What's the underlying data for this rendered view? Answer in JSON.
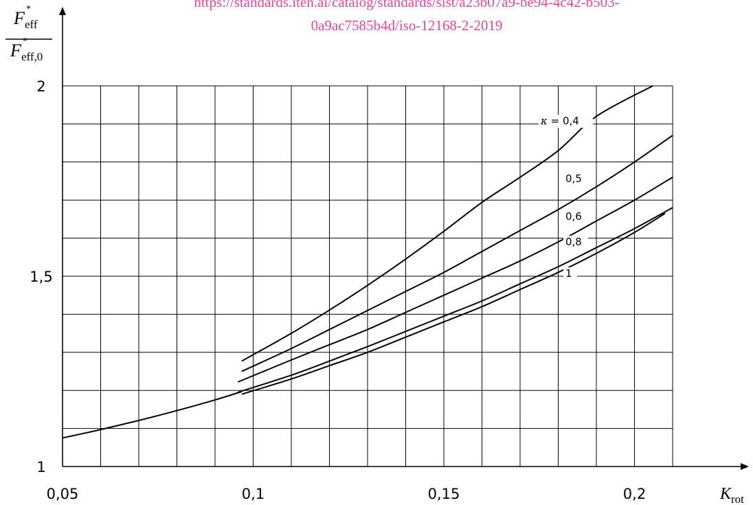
{
  "watermark": {
    "line1": "https://standards.iteh.ai/catalog/standards/sist/a23b07a9-be94-4c42-b503-",
    "line2": "0a9ac7585b4d/iso-12168-2-2019"
  },
  "chart_data": {
    "type": "line",
    "title": "",
    "xlabel": {
      "main": "K",
      "sub": "rot"
    },
    "ylabel": {
      "numerator": {
        "main": "F",
        "sup": "*",
        "sub": "eff"
      },
      "denominator": {
        "main": "F",
        "sup": "*",
        "sub": "eff,0"
      }
    },
    "xlim": [
      0.05,
      0.21
    ],
    "ylim": [
      1,
      2
    ],
    "x_ticks": [
      0.05,
      0.1,
      0.15,
      0.2
    ],
    "x_tick_labels": [
      "0,05",
      "0,1",
      "0,15",
      "0,2"
    ],
    "y_ticks": [
      1,
      1.5,
      2
    ],
    "y_tick_labels": [
      "1",
      "1,5",
      "2"
    ],
    "grid": {
      "on": true,
      "x_step": 0.01,
      "y_step": 0.1
    },
    "common_curve": {
      "name": "",
      "x": [
        0.05,
        0.06,
        0.07,
        0.08,
        0.09,
        0.097
      ],
      "y": [
        1.075,
        1.097,
        1.121,
        1.147,
        1.175,
        1.197
      ]
    },
    "series": [
      {
        "name": "κ = 0,4",
        "label_parts": {
          "symbol": "κ",
          "eq": " = ",
          "value": "0,4"
        },
        "x": [
          0.097,
          0.11,
          0.12,
          0.13,
          0.14,
          0.15,
          0.16,
          0.17,
          0.18,
          0.19,
          0.2048
        ],
        "y": [
          1.277,
          1.35,
          1.411,
          1.476,
          1.545,
          1.618,
          1.694,
          1.76,
          1.83,
          1.92,
          2.0
        ]
      },
      {
        "name": "0,5",
        "label_parts": {
          "symbol": "",
          "eq": "",
          "value": "0,5"
        },
        "x": [
          0.097,
          0.11,
          0.12,
          0.13,
          0.14,
          0.15,
          0.16,
          0.17,
          0.18,
          0.19,
          0.2,
          0.21
        ],
        "y": [
          1.25,
          1.31,
          1.36,
          1.41,
          1.46,
          1.51,
          1.565,
          1.62,
          1.675,
          1.735,
          1.8,
          1.87
        ]
      },
      {
        "name": "0,6",
        "label_parts": {
          "symbol": "",
          "eq": "",
          "value": "0,6"
        },
        "x": [
          0.096,
          0.11,
          0.12,
          0.13,
          0.14,
          0.15,
          0.16,
          0.17,
          0.18,
          0.19,
          0.2,
          0.21
        ],
        "y": [
          1.222,
          1.28,
          1.32,
          1.36,
          1.405,
          1.45,
          1.495,
          1.54,
          1.59,
          1.645,
          1.7,
          1.76
        ]
      },
      {
        "name": "0,8",
        "label_parts": {
          "symbol": "",
          "eq": "",
          "value": "0,8"
        },
        "x": [
          0.096,
          0.11,
          0.12,
          0.13,
          0.14,
          0.15,
          0.16,
          0.17,
          0.18,
          0.19,
          0.2,
          0.21
        ],
        "y": [
          1.195,
          1.24,
          1.277,
          1.315,
          1.355,
          1.395,
          1.435,
          1.48,
          1.525,
          1.575,
          1.625,
          1.68
        ]
      },
      {
        "name": "1",
        "label_parts": {
          "symbol": "",
          "eq": "",
          "value": "1"
        },
        "x": [
          0.097,
          0.11,
          0.12,
          0.13,
          0.14,
          0.15,
          0.16,
          0.17,
          0.18,
          0.19,
          0.2,
          0.208
        ],
        "y": [
          1.19,
          1.23,
          1.265,
          1.3,
          1.34,
          1.38,
          1.42,
          1.465,
          1.51,
          1.56,
          1.615,
          1.665
        ]
      }
    ],
    "legend": "inline labels on curves near right side"
  }
}
